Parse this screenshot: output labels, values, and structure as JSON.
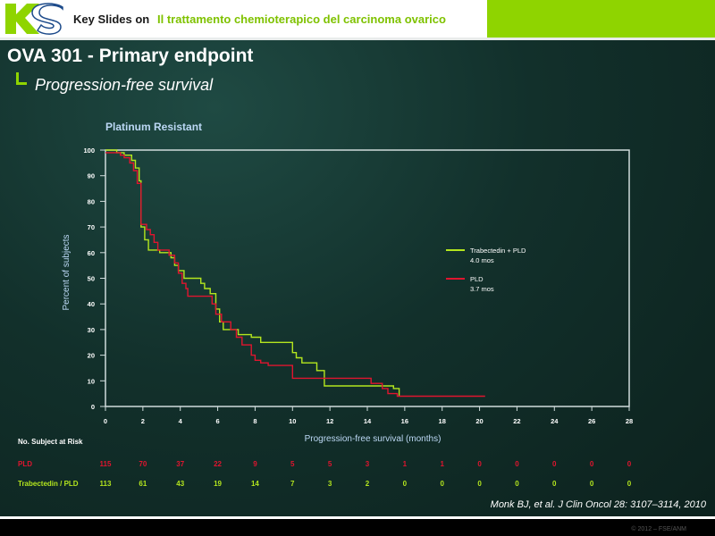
{
  "header": {
    "logo_text": "KS",
    "prefix": "Key Slides on",
    "title": "Il trattamento chemioterapico del carcinoma ovarico",
    "colors": {
      "accent": "#8fd400",
      "title": "#7fc200"
    }
  },
  "slide": {
    "title": "OVA 301 - Primary endpoint",
    "subtitle": "Progression-free survival",
    "panel_title": "Platinum Resistant"
  },
  "chart_data": {
    "type": "line",
    "title": "Platinum Resistant",
    "xlabel": "Progression-free survival (months)",
    "ylabel": "Percent of subjects",
    "xlim": [
      0,
      28
    ],
    "ylim": [
      0,
      100
    ],
    "x_ticks": [
      0,
      2,
      4,
      6,
      8,
      10,
      12,
      14,
      16,
      18,
      20,
      22,
      24,
      26,
      28
    ],
    "y_ticks": [
      0,
      10,
      20,
      30,
      40,
      50,
      60,
      70,
      80,
      90,
      100
    ],
    "legend_position": "right",
    "series": [
      {
        "name": "Trabectedin + PLD",
        "median": "4.0 mos",
        "color": "#b4e61e",
        "points": [
          [
            0,
            100
          ],
          [
            0.6,
            100
          ],
          [
            0.6,
            99
          ],
          [
            1.0,
            99
          ],
          [
            1.0,
            98
          ],
          [
            1.4,
            98
          ],
          [
            1.4,
            96
          ],
          [
            1.6,
            96
          ],
          [
            1.6,
            93
          ],
          [
            1.8,
            93
          ],
          [
            1.8,
            88
          ],
          [
            1.9,
            88
          ],
          [
            1.9,
            70
          ],
          [
            2.1,
            70
          ],
          [
            2.1,
            65
          ],
          [
            2.3,
            65
          ],
          [
            2.3,
            61
          ],
          [
            2.9,
            61
          ],
          [
            2.9,
            60
          ],
          [
            3.5,
            60
          ],
          [
            3.5,
            58
          ],
          [
            3.7,
            58
          ],
          [
            3.7,
            55
          ],
          [
            3.9,
            55
          ],
          [
            3.9,
            53
          ],
          [
            4.2,
            53
          ],
          [
            4.2,
            50
          ],
          [
            5.1,
            50
          ],
          [
            5.1,
            48
          ],
          [
            5.3,
            48
          ],
          [
            5.3,
            46
          ],
          [
            5.6,
            46
          ],
          [
            5.6,
            44
          ],
          [
            5.9,
            44
          ],
          [
            5.9,
            38
          ],
          [
            6.1,
            38
          ],
          [
            6.1,
            33
          ],
          [
            6.3,
            33
          ],
          [
            6.3,
            30
          ],
          [
            7.1,
            30
          ],
          [
            7.1,
            28
          ],
          [
            7.8,
            28
          ],
          [
            7.8,
            27
          ],
          [
            8.3,
            27
          ],
          [
            8.3,
            25
          ],
          [
            10.0,
            25
          ],
          [
            10.0,
            21
          ],
          [
            10.2,
            21
          ],
          [
            10.2,
            19
          ],
          [
            10.5,
            19
          ],
          [
            10.5,
            17
          ],
          [
            11.3,
            17
          ],
          [
            11.3,
            14
          ],
          [
            11.7,
            14
          ],
          [
            11.7,
            8
          ],
          [
            15.4,
            8
          ],
          [
            15.4,
            7
          ],
          [
            15.7,
            7
          ],
          [
            15.7,
            4
          ]
        ]
      },
      {
        "name": "PLD",
        "median": "3.7 mos",
        "color": "#e0152f",
        "points": [
          [
            0,
            99
          ],
          [
            0.8,
            99
          ],
          [
            0.8,
            98
          ],
          [
            1.0,
            98
          ],
          [
            1.0,
            97
          ],
          [
            1.3,
            97
          ],
          [
            1.3,
            95
          ],
          [
            1.5,
            95
          ],
          [
            1.5,
            92
          ],
          [
            1.7,
            92
          ],
          [
            1.7,
            87
          ],
          [
            1.9,
            87
          ],
          [
            1.9,
            71
          ],
          [
            2.2,
            71
          ],
          [
            2.2,
            69
          ],
          [
            2.4,
            69
          ],
          [
            2.4,
            67
          ],
          [
            2.6,
            67
          ],
          [
            2.6,
            64
          ],
          [
            2.8,
            64
          ],
          [
            2.8,
            61
          ],
          [
            3.4,
            61
          ],
          [
            3.4,
            59
          ],
          [
            3.7,
            59
          ],
          [
            3.7,
            56
          ],
          [
            3.9,
            56
          ],
          [
            3.9,
            52
          ],
          [
            4.1,
            52
          ],
          [
            4.1,
            48
          ],
          [
            4.3,
            48
          ],
          [
            4.3,
            46
          ],
          [
            4.4,
            46
          ],
          [
            4.4,
            43
          ],
          [
            5.7,
            43
          ],
          [
            5.7,
            40
          ],
          [
            5.9,
            40
          ],
          [
            5.9,
            36
          ],
          [
            6.2,
            36
          ],
          [
            6.2,
            33
          ],
          [
            6.7,
            33
          ],
          [
            6.7,
            30
          ],
          [
            7.0,
            30
          ],
          [
            7.0,
            27
          ],
          [
            7.3,
            27
          ],
          [
            7.3,
            24
          ],
          [
            7.8,
            24
          ],
          [
            7.8,
            20
          ],
          [
            8.0,
            20
          ],
          [
            8.0,
            18
          ],
          [
            8.3,
            18
          ],
          [
            8.3,
            17
          ],
          [
            8.7,
            17
          ],
          [
            8.7,
            16
          ],
          [
            10.0,
            16
          ],
          [
            10.0,
            11
          ],
          [
            14.2,
            11
          ],
          [
            14.2,
            9
          ],
          [
            14.8,
            9
          ],
          [
            14.8,
            7
          ],
          [
            15.1,
            7
          ],
          [
            15.1,
            5
          ],
          [
            15.6,
            5
          ],
          [
            15.6,
            4
          ],
          [
            20.3,
            4
          ]
        ]
      }
    ],
    "at_risk": {
      "header": "No. Subject at Risk",
      "months": [
        0,
        2,
        4,
        6,
        8,
        10,
        12,
        14,
        16,
        18,
        20,
        22,
        24,
        26,
        28
      ],
      "rows": [
        {
          "label": "PLD",
          "color": "#e0152f",
          "values": [
            "115",
            "70",
            "37",
            "22",
            "9",
            "5",
            "5",
            "3",
            "1",
            "1",
            "0",
            "0",
            "0",
            "0",
            "0"
          ]
        },
        {
          "label": "Trabectedin / PLD",
          "color": "#b4e61e",
          "values": [
            "113",
            "61",
            "43",
            "19",
            "14",
            "7",
            "3",
            "2",
            "0",
            "0",
            "0",
            "0",
            "0",
            "0",
            "0"
          ]
        }
      ]
    }
  },
  "citation": "Monk BJ, et al. J Clin Oncol 28: 3107–3114, 2010",
  "footer": {
    "copyright": "© 2012 – FSE/ANM"
  }
}
